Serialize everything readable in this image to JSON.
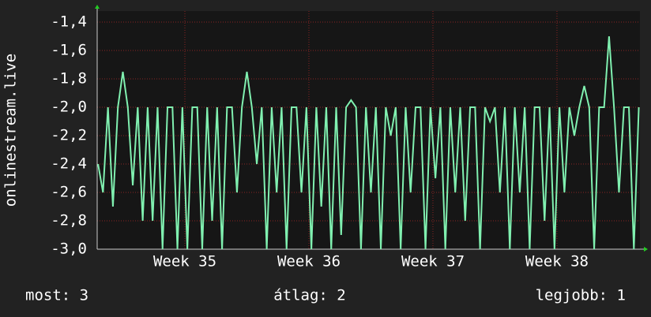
{
  "chart_data": {
    "type": "line",
    "y_label": "onlinestream.live",
    "xlim": [
      34.293,
      38.669
    ],
    "ylim": [
      -3.0,
      -1.322
    ],
    "xticks": [
      {
        "value": 35,
        "label": "Week 35"
      },
      {
        "value": 36,
        "label": "Week 36"
      },
      {
        "value": 37,
        "label": "Week 37"
      },
      {
        "value": 38,
        "label": "Week 38"
      }
    ],
    "yticks": [
      {
        "value": -3.0,
        "label": "-3,0"
      },
      {
        "value": -2.8,
        "label": "-2,8"
      },
      {
        "value": -2.6,
        "label": "-2,6"
      },
      {
        "value": -2.4,
        "label": "-2,4"
      },
      {
        "value": -2.2,
        "label": "-2,2"
      },
      {
        "value": -2.0,
        "label": "-2,0"
      },
      {
        "value": -1.8,
        "label": "-1,8"
      },
      {
        "value": -1.6,
        "label": "-1,6"
      },
      {
        "value": -1.4,
        "label": "-1,4"
      }
    ],
    "grid": true,
    "x": [
      34.3,
      34.34,
      34.38,
      34.42,
      34.46,
      34.5,
      34.54,
      34.58,
      34.62,
      34.66,
      34.7,
      34.74,
      34.78,
      34.82,
      34.86,
      34.9,
      34.94,
      34.98,
      35.02,
      35.06,
      35.1,
      35.14,
      35.18,
      35.22,
      35.26,
      35.3,
      35.34,
      35.38,
      35.42,
      35.46,
      35.5,
      35.54,
      35.58,
      35.62,
      35.66,
      35.7,
      35.74,
      35.78,
      35.82,
      35.86,
      35.9,
      35.94,
      35.98,
      36.02,
      36.06,
      36.1,
      36.14,
      36.18,
      36.22,
      36.26,
      36.3,
      36.34,
      36.38,
      36.42,
      36.46,
      36.5,
      36.54,
      36.58,
      36.62,
      36.66,
      36.7,
      36.74,
      36.78,
      36.82,
      36.86,
      36.9,
      36.94,
      36.98,
      37.02,
      37.06,
      37.1,
      37.14,
      37.18,
      37.22,
      37.26,
      37.3,
      37.34,
      37.38,
      37.42,
      37.46,
      37.5,
      37.54,
      37.58,
      37.62,
      37.66,
      37.7,
      37.74,
      37.78,
      37.82,
      37.86,
      37.9,
      37.94,
      37.98,
      38.02,
      38.06,
      38.1,
      38.14,
      38.18,
      38.22,
      38.26,
      38.3,
      38.34,
      38.38,
      38.42,
      38.46,
      38.5,
      38.54,
      38.58,
      38.62,
      38.66
    ],
    "series": [
      {
        "color": "#80f0b0",
        "values": [
          -2.4,
          -2.6,
          -2.0,
          -2.7,
          -2.0,
          -1.75,
          -2.0,
          -2.55,
          -2.0,
          -2.8,
          -2.0,
          -2.8,
          -2.0,
          -3.0,
          -2.0,
          -2.0,
          -3.0,
          -2.0,
          -3.0,
          -2.0,
          -2.0,
          -3.0,
          -2.0,
          -2.8,
          -2.0,
          -3.0,
          -2.0,
          -2.0,
          -2.6,
          -2.0,
          -1.75,
          -2.0,
          -2.4,
          -2.0,
          -3.0,
          -2.0,
          -2.6,
          -2.0,
          -3.0,
          -2.0,
          -2.0,
          -2.6,
          -2.0,
          -3.0,
          -2.0,
          -2.7,
          -2.0,
          -3.0,
          -2.0,
          -2.9,
          -2.0,
          -1.95,
          -2.0,
          -3.0,
          -2.0,
          -2.6,
          -2.0,
          -3.0,
          -2.0,
          -2.2,
          -2.0,
          -3.0,
          -2.0,
          -2.6,
          -2.0,
          -2.0,
          -3.0,
          -2.0,
          -2.5,
          -2.0,
          -3.0,
          -2.0,
          -2.6,
          -2.0,
          -2.8,
          -2.0,
          -2.0,
          -3.0,
          -2.0,
          -2.1,
          -2.0,
          -2.6,
          -2.0,
          -3.0,
          -2.0,
          -2.6,
          -2.0,
          -3.0,
          -2.0,
          -2.0,
          -2.8,
          -2.0,
          -3.0,
          -2.0,
          -2.6,
          -2.0,
          -2.2,
          -2.0,
          -1.85,
          -2.0,
          -3.0,
          -2.0,
          -2.0,
          -1.5,
          -2.0,
          -2.6,
          -2.0,
          -2.0,
          -3.0,
          -2.0
        ]
      }
    ]
  },
  "footer": [
    "most: 3",
    "átlag: 2",
    "legjobb: 1"
  ]
}
